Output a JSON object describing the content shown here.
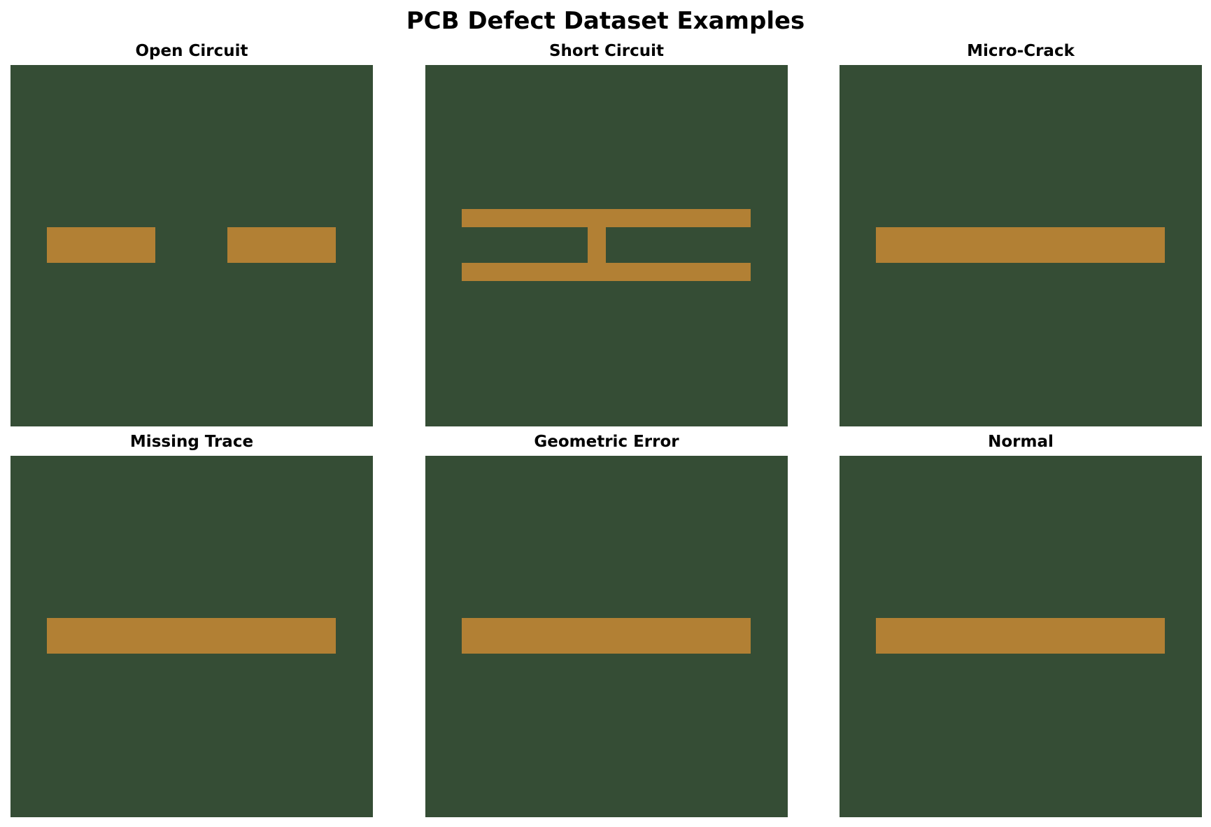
{
  "figure": {
    "title": "PCB Defect Dataset Examples"
  },
  "colors": {
    "board": "#354d35",
    "copper": "#b28034",
    "background": "#ffffff"
  },
  "panels": [
    {
      "title": "Open Circuit"
    },
    {
      "title": "Short Circuit"
    },
    {
      "title": "Micro-Crack"
    },
    {
      "title": "Missing Trace"
    },
    {
      "title": "Geometric Error"
    },
    {
      "title": "Normal"
    }
  ]
}
